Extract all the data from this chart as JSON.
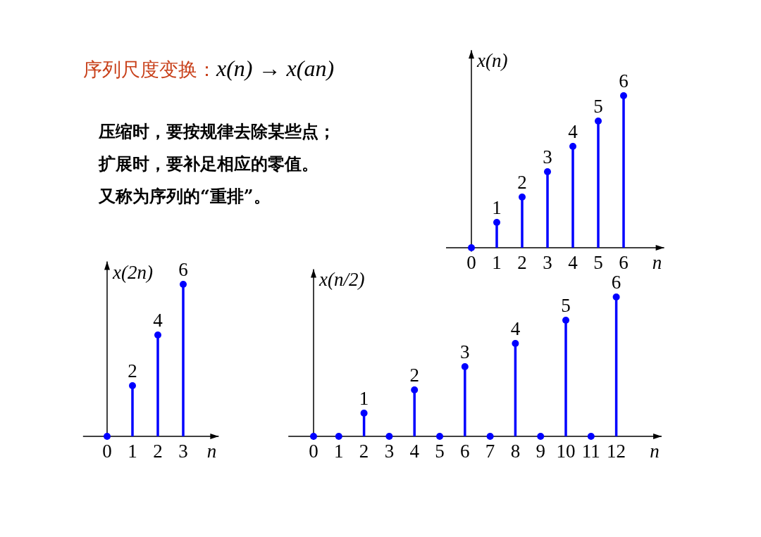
{
  "chart_data": [
    {
      "type": "lollipop",
      "title": "序列尺度变换：x(n) → x(an)",
      "annotations": [
        "压缩时，要按规律去除某些点；",
        "扩展时，要补足相应的零值。",
        "又称为序列的“重排”。"
      ],
      "ylabel": "x(n)",
      "xlabel": "n",
      "x": [
        0,
        1,
        2,
        3,
        4,
        5,
        6
      ],
      "xlim": [
        -1,
        7.6
      ],
      "ylim": [
        -0.15,
        7.8
      ],
      "xticks": [
        0,
        1,
        2,
        3,
        4,
        5,
        6
      ],
      "marker": "circle",
      "series": [
        {
          "color": "#0000ff",
          "values": [
            0,
            1,
            2,
            3,
            4,
            5,
            6
          ],
          "value_labels": [
            null,
            "1",
            "2",
            "3",
            "4",
            "5",
            "6"
          ]
        }
      ]
    },
    {
      "type": "lollipop",
      "ylabel": "x(2n)",
      "xlabel": "n",
      "x": [
        0,
        1,
        2,
        3
      ],
      "xlim": [
        -0.95,
        4.4
      ],
      "ylim": [
        -0.1,
        6.9
      ],
      "xticks": [
        0,
        1,
        2,
        3
      ],
      "marker": "circle",
      "series": [
        {
          "color": "#0000ff",
          "values": [
            0,
            2,
            4,
            6
          ],
          "value_labels": [
            null,
            "2",
            "4",
            "6"
          ]
        }
      ]
    },
    {
      "type": "lollipop",
      "ylabel": "x(n/2)",
      "xlabel": "n",
      "x": [
        0,
        1,
        2,
        3,
        4,
        5,
        6,
        7,
        8,
        9,
        10,
        11,
        12
      ],
      "xlim": [
        -1,
        13.8
      ],
      "ylim": [
        -0.15,
        7.2
      ],
      "xticks": [
        0,
        1,
        2,
        3,
        4,
        5,
        6,
        7,
        8,
        9,
        10,
        11,
        12
      ],
      "marker": "circle",
      "series": [
        {
          "color": "#0000ff",
          "values": [
            0,
            0,
            1,
            0,
            2,
            0,
            3,
            0,
            4,
            0,
            5,
            0,
            6
          ],
          "value_labels": [
            null,
            null,
            "1",
            null,
            "2",
            null,
            "3",
            null,
            "4",
            null,
            "5",
            null,
            "6"
          ]
        }
      ]
    }
  ]
}
